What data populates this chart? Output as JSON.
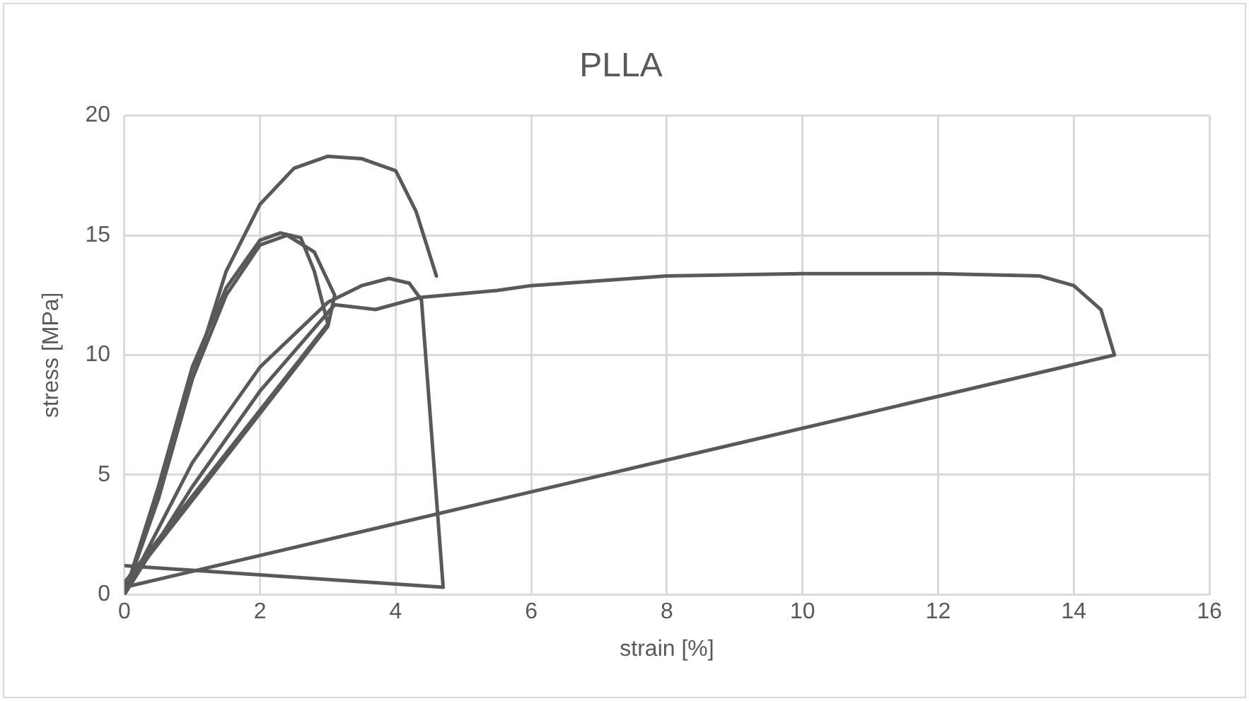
{
  "chart_data": {
    "type": "line",
    "title": "PLLA",
    "xlabel": "strain [%]",
    "ylabel": "stress [MPa]",
    "xlim": [
      0,
      16
    ],
    "xticks": [
      0,
      2,
      4,
      6,
      8,
      10,
      12,
      14,
      16
    ],
    "ylim": [
      0,
      20
    ],
    "yticks": [
      0,
      5,
      10,
      15,
      20
    ],
    "grid": true,
    "legend": false,
    "marker": "none",
    "line_style": "solid",
    "series": [
      {
        "color": "#595959",
        "x": [
          0,
          0.5,
          1,
          1.5,
          2,
          2.5,
          3,
          3.5,
          4,
          4.3,
          4.6
        ],
        "values": [
          0,
          4,
          9,
          13.5,
          16.3,
          17.8,
          18.3,
          18.2,
          17.7,
          16,
          13.3
        ]
      },
      {
        "color": "#595959",
        "x": [
          0,
          0.5,
          1,
          1.5,
          2,
          2.3,
          2.6,
          2.8,
          3,
          0
        ],
        "values": [
          0,
          4.5,
          9.5,
          12.8,
          14.8,
          15.1,
          14.9,
          13.5,
          11.3,
          0.5
        ]
      },
      {
        "color": "#595959",
        "x": [
          0,
          0.5,
          1,
          1.5,
          2,
          2.4,
          2.8,
          3.1,
          3,
          0
        ],
        "values": [
          0,
          4,
          9,
          12.5,
          14.6,
          15,
          14.3,
          12.5,
          11.2,
          0.3
        ]
      },
      {
        "color": "#595959",
        "x": [
          0,
          1,
          2,
          3.1,
          3.7,
          4.35,
          5.5,
          6,
          8,
          10,
          12,
          13.5,
          14,
          14.4,
          14.6,
          0
        ],
        "values": [
          0,
          4.5,
          8.5,
          12.1,
          11.9,
          12.4,
          12.7,
          12.9,
          13.3,
          13.4,
          13.4,
          13.3,
          12.9,
          11.9,
          10,
          0.3
        ]
      },
      {
        "color": "#595959",
        "x": [
          0,
          1,
          2,
          3,
          3.5,
          3.9,
          4.2,
          4.38,
          4.7,
          0
        ],
        "values": [
          0,
          5.5,
          9.5,
          12.2,
          12.9,
          13.2,
          13,
          12.3,
          0.3,
          1.2
        ]
      }
    ]
  }
}
